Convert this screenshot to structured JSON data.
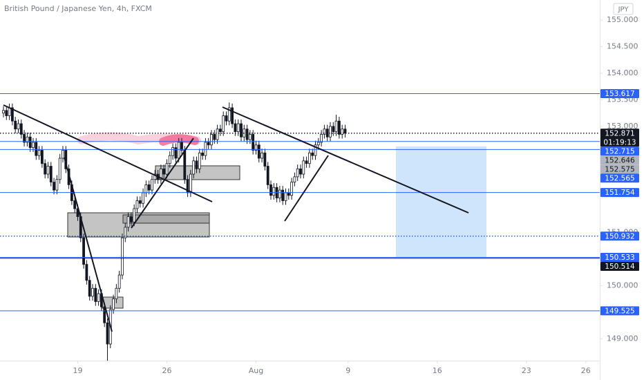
{
  "chart_data": {
    "type": "candlestick",
    "title": "British Pound / Japanese Yen, 4h, FXCM",
    "currency": "JPY",
    "color": "#131722",
    "up_fill": "#ffffff",
    "x": [
      0,
      1,
      2,
      3,
      4,
      5,
      6,
      7,
      8,
      9,
      10,
      11,
      12,
      13,
      14,
      15,
      16,
      17,
      18,
      19,
      20,
      21,
      22,
      23,
      24,
      25,
      26,
      27,
      28,
      29,
      30,
      31,
      32,
      33,
      34,
      35,
      36,
      37,
      38,
      39,
      40,
      41,
      42,
      43,
      44,
      45,
      46,
      47,
      48,
      49,
      50,
      51,
      52,
      53,
      54,
      55,
      56,
      57,
      58,
      59,
      60,
      61,
      62,
      63,
      64,
      65,
      66,
      67,
      68,
      69,
      70,
      71,
      72,
      73,
      74,
      75,
      76,
      77,
      78,
      79,
      80,
      81,
      82,
      83,
      84,
      85,
      86,
      87,
      88,
      89,
      90,
      91,
      92,
      93,
      94,
      95,
      96,
      97,
      98,
      99,
      100,
      101,
      102,
      103,
      104,
      105,
      106,
      107,
      108,
      109,
      110,
      111,
      112,
      113,
      114,
      115
    ],
    "open": [
      153.25,
      153.3,
      153.2,
      153.35,
      153.1,
      152.95,
      153.05,
      152.85,
      152.7,
      152.8,
      152.6,
      152.7,
      152.45,
      152.55,
      152.3,
      152.1,
      152.25,
      151.95,
      151.8,
      152.0,
      152.4,
      152.55,
      152.2,
      151.9,
      151.6,
      151.45,
      151.3,
      150.9,
      150.4,
      150.1,
      149.8,
      149.95,
      149.7,
      149.85,
      149.6,
      149.3,
      148.9,
      149.55,
      149.75,
      149.95,
      150.2,
      150.9,
      151.1,
      151.3,
      151.2,
      151.45,
      151.6,
      151.55,
      151.75,
      151.9,
      151.8,
      152.0,
      152.1,
      152.0,
      152.2,
      152.1,
      152.3,
      152.45,
      152.6,
      152.4,
      152.7,
      152.55,
      152.0,
      151.75,
      152.1,
      152.35,
      152.2,
      152.5,
      152.45,
      152.7,
      152.65,
      152.85,
      152.75,
      152.95,
      152.9,
      153.2,
      153.1,
      153.35,
      153.05,
      152.9,
      153.05,
      152.8,
      152.95,
      152.75,
      152.85,
      152.55,
      152.65,
      152.4,
      152.5,
      152.25,
      151.9,
      151.7,
      151.85,
      151.65,
      151.8,
      151.6,
      151.75,
      151.7,
      151.95,
      152.05,
      152.2,
      152.1,
      152.35,
      152.3,
      152.5,
      152.45,
      152.65,
      152.7,
      152.85,
      152.95,
      152.8,
      153.0,
      152.9,
      153.1,
      152.85,
      152.95
    ],
    "high": [
      153.38,
      153.38,
      153.43,
      153.43,
      153.18,
      153.13,
      153.13,
      152.93,
      152.88,
      152.88,
      152.78,
      152.78,
      152.63,
      152.63,
      152.38,
      152.33,
      152.33,
      152.03,
      152.08,
      152.48,
      152.63,
      152.63,
      152.28,
      151.98,
      151.68,
      151.53,
      151.38,
      150.98,
      150.48,
      150.18,
      150.03,
      150.03,
      149.93,
      149.93,
      149.68,
      149.38,
      149.63,
      149.83,
      150.03,
      150.28,
      150.98,
      151.18,
      151.38,
      151.38,
      151.53,
      151.68,
      151.68,
      151.83,
      151.98,
      151.98,
      152.08,
      152.18,
      152.18,
      152.28,
      152.28,
      152.38,
      152.53,
      152.68,
      152.68,
      152.78,
      152.78,
      152.63,
      152.08,
      152.18,
      152.43,
      152.43,
      152.58,
      152.58,
      152.78,
      152.78,
      152.93,
      152.93,
      153.03,
      153.03,
      153.28,
      153.28,
      153.45,
      153.43,
      153.13,
      153.13,
      153.13,
      153.03,
      153.03,
      152.93,
      152.93,
      152.73,
      152.73,
      152.58,
      152.58,
      152.33,
      151.98,
      151.93,
      151.93,
      151.88,
      151.88,
      151.83,
      151.83,
      152.03,
      152.13,
      152.28,
      152.28,
      152.43,
      152.43,
      152.58,
      152.58,
      152.73,
      152.78,
      152.93,
      153.03,
      153.03,
      153.08,
      153.08,
      153.22,
      153.18,
      153.03,
      153.03
    ],
    "low": [
      153.17,
      153.12,
      153.12,
      153.02,
      152.87,
      152.87,
      152.77,
      152.62,
      152.62,
      152.52,
      152.52,
      152.37,
      152.37,
      152.22,
      152.02,
      152.02,
      151.87,
      151.72,
      151.72,
      151.92,
      152.32,
      152.12,
      151.82,
      151.52,
      151.37,
      151.22,
      150.82,
      150.32,
      150.02,
      149.72,
      149.72,
      149.62,
      149.62,
      149.52,
      149.22,
      148.55,
      148.82,
      149.47,
      149.67,
      149.87,
      150.12,
      150.82,
      151.02,
      151.12,
      151.12,
      151.37,
      151.47,
      151.47,
      151.67,
      151.72,
      151.72,
      151.92,
      151.92,
      151.92,
      152.02,
      152.02,
      152.22,
      152.37,
      152.32,
      152.32,
      152.47,
      151.92,
      151.67,
      151.67,
      152.02,
      152.12,
      152.12,
      152.37,
      152.37,
      152.57,
      152.57,
      152.67,
      152.67,
      152.82,
      152.82,
      153.02,
      153.02,
      152.97,
      152.82,
      152.82,
      152.72,
      152.72,
      152.67,
      152.67,
      152.47,
      152.47,
      152.32,
      152.32,
      152.17,
      151.82,
      151.62,
      151.62,
      151.57,
      151.57,
      151.52,
      151.52,
      151.62,
      151.62,
      151.87,
      151.97,
      152.02,
      152.02,
      152.22,
      152.22,
      152.37,
      152.37,
      152.57,
      152.62,
      152.77,
      152.72,
      152.72,
      152.82,
      152.82,
      152.77,
      152.77,
      152.79
    ],
    "close": [
      153.3,
      153.2,
      153.35,
      153.1,
      152.95,
      153.05,
      152.85,
      152.7,
      152.8,
      152.6,
      152.7,
      152.45,
      152.55,
      152.3,
      152.1,
      152.25,
      151.95,
      151.8,
      152.0,
      152.4,
      152.55,
      152.2,
      151.9,
      151.6,
      151.45,
      151.3,
      150.9,
      150.4,
      150.1,
      149.8,
      149.95,
      149.7,
      149.85,
      149.6,
      149.3,
      148.9,
      149.55,
      149.75,
      149.95,
      150.2,
      150.9,
      151.1,
      151.3,
      151.2,
      151.45,
      151.6,
      151.55,
      151.75,
      151.9,
      151.8,
      152.0,
      152.1,
      152.0,
      152.2,
      152.1,
      152.3,
      152.45,
      152.6,
      152.4,
      152.7,
      152.55,
      152.0,
      151.75,
      152.1,
      152.35,
      152.2,
      152.5,
      152.45,
      152.7,
      152.65,
      152.85,
      152.75,
      152.95,
      152.9,
      153.2,
      153.1,
      153.35,
      153.05,
      152.9,
      153.05,
      152.8,
      152.95,
      152.75,
      152.85,
      152.55,
      152.65,
      152.4,
      152.5,
      152.25,
      151.9,
      151.7,
      151.85,
      151.65,
      151.8,
      151.6,
      151.75,
      151.7,
      151.95,
      152.05,
      152.2,
      152.1,
      152.35,
      152.3,
      152.5,
      152.45,
      152.65,
      152.7,
      152.85,
      152.95,
      152.8,
      153.0,
      152.9,
      153.1,
      152.85,
      152.95,
      152.871
    ],
    "xlim": [
      -1.16,
      200.7
    ],
    "ylim": [
      148.6,
      155.38
    ],
    "xticks": [
      {
        "value": 25,
        "label": "19"
      },
      {
        "value": 55,
        "label": "26"
      },
      {
        "value": 85,
        "label": "Aug"
      },
      {
        "value": 116,
        "label": "9"
      },
      {
        "value": 146,
        "label": "16"
      },
      {
        "value": 176,
        "label": "23"
      },
      {
        "value": 196,
        "label": "26"
      }
    ],
    "yticks": [
      {
        "value": 155,
        "label": "155.000"
      },
      {
        "value": 154.5,
        "label": "154.500"
      },
      {
        "value": 154,
        "label": "154.000"
      },
      {
        "value": 153.5,
        "label": "153.500"
      },
      {
        "value": 153,
        "label": "153.000"
      },
      {
        "value": 151,
        "label": "151.000"
      },
      {
        "value": 150,
        "label": "150.000"
      },
      {
        "value": 149,
        "label": "149.000"
      }
    ],
    "levels": [
      {
        "value": 153.617,
        "color": "#2962ff",
        "line": "solid"
      },
      {
        "value": 152.871,
        "color": "#131722",
        "line": "dotted",
        "countdown": "01:19:13"
      },
      {
        "value": 152.715,
        "color": "#2962ff",
        "line": "solid"
      },
      {
        "value": 152.646,
        "color": "#b2b5be",
        "line": "none"
      },
      {
        "value": 152.575,
        "color": "#b2b5be",
        "line": "none"
      },
      {
        "value": 152.565,
        "color": "#2962ff",
        "line": "solid"
      },
      {
        "value": 151.754,
        "color": "#2962ff",
        "line": "solid"
      },
      {
        "value": 150.932,
        "color": "#2962ff",
        "line": "dotted"
      },
      {
        "value": 150.533,
        "color": "#2962ff",
        "line": "solid"
      },
      {
        "value": 150.514,
        "color": "#131722",
        "line": "solid"
      },
      {
        "value": 149.525,
        "color": "#2962ff",
        "line": "solid"
      }
    ]
  }
}
